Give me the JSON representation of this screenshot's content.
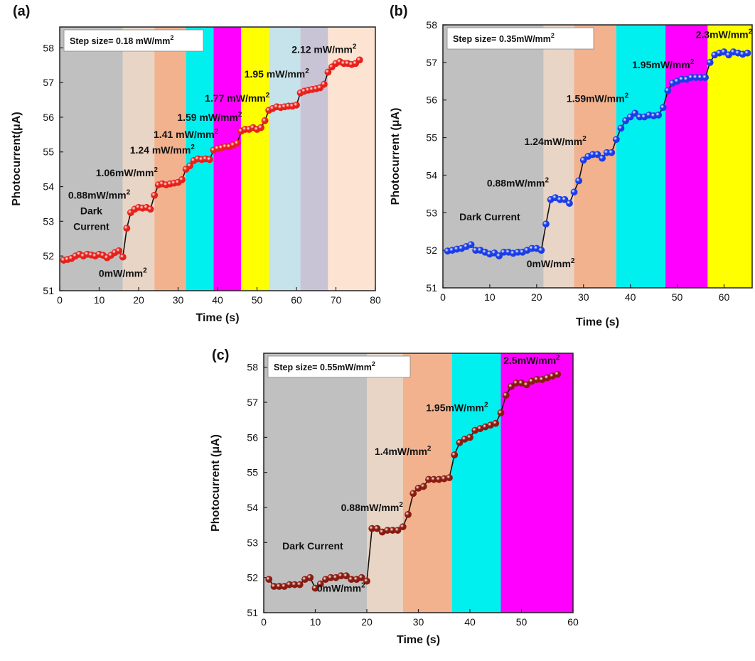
{
  "panels": [
    {
      "panel_label": "(a)",
      "legend_text": "Step size= 0.18 mW/mm",
      "legend_sup": "2",
      "chart_data": {
        "type": "scatter",
        "xlabel": "Time (s)",
        "ylabel": "Photocurrent(μA)",
        "xlim": [
          0,
          80
        ],
        "ylim": [
          51,
          58.6
        ],
        "xticks": [
          0,
          10,
          20,
          30,
          40,
          50,
          60,
          70,
          80
        ],
        "yticks": [
          51,
          52,
          53,
          54,
          55,
          56,
          57,
          58
        ],
        "marker_color": "#e8201a",
        "bands": [
          {
            "from": 0,
            "to": 16,
            "color": "#c0c0c0"
          },
          {
            "from": 16,
            "to": 24,
            "color": "#e8d5c6"
          },
          {
            "from": 24,
            "to": 32,
            "color": "#f2b28e"
          },
          {
            "from": 32,
            "to": 39,
            "color": "#00f0f0"
          },
          {
            "from": 39,
            "to": 46,
            "color": "#ff00ff"
          },
          {
            "from": 46,
            "to": 53,
            "color": "#ffff00"
          },
          {
            "from": 53,
            "to": 61,
            "color": "#c6e2ea"
          },
          {
            "from": 61,
            "to": 68,
            "color": "#c8c4d6"
          },
          {
            "from": 68,
            "to": 80,
            "color": "#fde4d2"
          }
        ],
        "series": [
          {
            "x": [
              1,
              2,
              3,
              4,
              5,
              6,
              7,
              8,
              9,
              10,
              11,
              12,
              13,
              14,
              15,
              16,
              17,
              18,
              19,
              20,
              21,
              22,
              23,
              24,
              25,
              26,
              27,
              28,
              29,
              30,
              31,
              32,
              33,
              34,
              35,
              36,
              37,
              38,
              39,
              40,
              41,
              42,
              43,
              44,
              45,
              46,
              47,
              48,
              49,
              50,
              51,
              52,
              53,
              54,
              55,
              56,
              57,
              58,
              59,
              60,
              61,
              62,
              63,
              64,
              65,
              66,
              67,
              68,
              69,
              70,
              71,
              72,
              73,
              74,
              75,
              76
            ],
            "y": [
              51.88,
              51.9,
              51.93,
              52.0,
              52.05,
              52.0,
              52.05,
              52.03,
              52.0,
              52.05,
              52.02,
              51.95,
              52.02,
              52.1,
              52.15,
              51.97,
              52.8,
              53.25,
              53.35,
              53.4,
              53.38,
              53.4,
              53.35,
              53.75,
              54.05,
              54.08,
              54.05,
              54.08,
              54.1,
              54.12,
              54.2,
              54.5,
              54.6,
              54.75,
              54.8,
              54.78,
              54.8,
              54.78,
              55.05,
              55.1,
              55.12,
              55.15,
              55.15,
              55.2,
              55.25,
              55.6,
              55.65,
              55.65,
              55.7,
              55.65,
              55.7,
              55.9,
              56.2,
              56.25,
              56.3,
              56.28,
              56.3,
              56.32,
              56.32,
              56.35,
              56.7,
              56.75,
              56.78,
              56.8,
              56.82,
              56.85,
              56.95,
              57.3,
              57.45,
              57.55,
              57.6,
              57.55,
              57.55,
              57.52,
              57.55,
              57.65
            ]
          }
        ],
        "annotations": [
          {
            "label": "Dark",
            "x": 8,
            "y": 53.2
          },
          {
            "label": "Current",
            "x": 8,
            "y": 52.75
          },
          {
            "label": "0mW/mm",
            "sup": "2",
            "x": 16,
            "y": 51.4
          },
          {
            "label": "0.88mW/mm",
            "sup": "2",
            "x": 10,
            "y": 53.65
          },
          {
            "label": "1.06mW/mm",
            "sup": "2",
            "x": 17,
            "y": 54.3
          },
          {
            "label": "1.24 mW/mm",
            "sup": "2",
            "x": 26,
            "y": 54.95
          },
          {
            "label": "1.41 mW/mm",
            "sup": "2",
            "x": 32,
            "y": 55.4
          },
          {
            "label": "1.59 mW/mm",
            "sup": "2",
            "x": 38,
            "y": 55.9
          },
          {
            "label": "1.77 mW/mm",
            "sup": "2",
            "x": 45,
            "y": 56.45
          },
          {
            "label": "1.95 mW/mm",
            "sup": "2",
            "x": 55,
            "y": 57.15
          },
          {
            "label": "2.12 mW/mm",
            "sup": "2",
            "x": 67,
            "y": 57.85
          }
        ]
      }
    },
    {
      "panel_label": "(b)",
      "legend_text": "Step size= 0.35mW/mm",
      "legend_sup": "2",
      "chart_data": {
        "type": "scatter",
        "xlabel": "Time (s)",
        "ylabel": "Photocurrent (μA)",
        "xlim": [
          0,
          66
        ],
        "ylim": [
          51,
          58
        ],
        "xticks": [
          0,
          10,
          20,
          30,
          40,
          50,
          60
        ],
        "yticks": [
          51,
          52,
          53,
          54,
          55,
          56,
          57,
          58
        ],
        "marker_color": "#1a3de8",
        "bands": [
          {
            "from": 0,
            "to": 21.5,
            "color": "#c0c0c0"
          },
          {
            "from": 21.5,
            "to": 28,
            "color": "#e8d5c6"
          },
          {
            "from": 28,
            "to": 37,
            "color": "#f2b28e"
          },
          {
            "from": 37,
            "to": 47.5,
            "color": "#00f0f0"
          },
          {
            "from": 47.5,
            "to": 56.5,
            "color": "#ff00ff"
          },
          {
            "from": 56.5,
            "to": 66,
            "color": "#ffff00"
          }
        ],
        "series": [
          {
            "x": [
              1,
              2,
              3,
              4,
              5,
              6,
              7,
              8,
              9,
              10,
              11,
              12,
              13,
              14,
              15,
              16,
              17,
              18,
              19,
              20,
              21,
              22,
              23,
              24,
              25,
              26,
              27,
              28,
              29,
              30,
              31,
              32,
              33,
              34,
              35,
              36,
              37,
              38,
              39,
              40,
              41,
              42,
              43,
              44,
              45,
              46,
              47,
              48,
              49,
              50,
              51,
              52,
              53,
              54,
              55,
              56,
              57,
              58,
              59,
              60,
              61,
              62,
              63,
              64,
              65
            ],
            "y": [
              51.98,
              52.0,
              52.03,
              52.05,
              52.1,
              52.15,
              52.0,
              52.0,
              51.95,
              51.9,
              51.93,
              51.85,
              51.95,
              51.95,
              51.92,
              51.95,
              51.95,
              52.0,
              52.05,
              52.05,
              52.0,
              52.7,
              53.35,
              53.4,
              53.35,
              53.35,
              53.25,
              53.55,
              53.85,
              54.4,
              54.5,
              54.55,
              54.55,
              54.45,
              54.6,
              54.6,
              54.95,
              55.25,
              55.45,
              55.55,
              55.65,
              55.55,
              55.55,
              55.6,
              55.58,
              55.6,
              55.8,
              56.25,
              56.45,
              56.5,
              56.55,
              56.55,
              56.6,
              56.6,
              56.6,
              56.6,
              57.0,
              57.2,
              57.25,
              57.28,
              57.2,
              57.28,
              57.25,
              57.22,
              57.25
            ]
          }
        ],
        "annotations": [
          {
            "label": "Dark Current",
            "x": 10,
            "y": 52.8
          },
          {
            "label": "0mW/mm",
            "sup": "2",
            "x": 23,
            "y": 51.55
          },
          {
            "label": "0.88mW/mm",
            "sup": "2",
            "x": 16,
            "y": 53.7
          },
          {
            "label": "1.24mW/mm",
            "sup": "2",
            "x": 24,
            "y": 54.8
          },
          {
            "label": "1.59mW/mm",
            "sup": "2",
            "x": 33,
            "y": 55.95
          },
          {
            "label": "1.95mW/mm",
            "sup": "2",
            "x": 47,
            "y": 56.85
          },
          {
            "label": "2.3mW/mm",
            "sup": "2",
            "x": 60,
            "y": 57.65
          }
        ]
      }
    },
    {
      "panel_label": "(c)",
      "legend_text": "Step size= 0.55mW/mm",
      "legend_sup": "2",
      "chart_data": {
        "type": "scatter",
        "xlabel": "Time (s)",
        "ylabel": "Photocurrent (μA)",
        "xlim": [
          0,
          60
        ],
        "ylim": [
          51,
          58.4
        ],
        "xticks": [
          0,
          10,
          20,
          30,
          40,
          50,
          60
        ],
        "yticks": [
          51,
          52,
          53,
          54,
          55,
          56,
          57,
          58
        ],
        "marker_color": "#8b1a10",
        "bands": [
          {
            "from": 0,
            "to": 20,
            "color": "#c0c0c0"
          },
          {
            "from": 20,
            "to": 27,
            "color": "#e8d5c6"
          },
          {
            "from": 27,
            "to": 36.5,
            "color": "#f2b28e"
          },
          {
            "from": 36.5,
            "to": 46,
            "color": "#00f0f0"
          },
          {
            "from": 46,
            "to": 60,
            "color": "#ff00ff"
          }
        ],
        "series": [
          {
            "x": [
              1,
              2,
              3,
              4,
              5,
              6,
              7,
              8,
              9,
              10,
              11,
              12,
              13,
              14,
              15,
              16,
              17,
              18,
              19,
              20,
              21,
              22,
              23,
              24,
              25,
              26,
              27,
              28,
              29,
              30,
              31,
              32,
              33,
              34,
              35,
              36,
              37,
              38,
              39,
              40,
              41,
              42,
              43,
              44,
              45,
              46,
              47,
              48,
              49,
              50,
              51,
              52,
              53,
              54,
              55,
              56,
              57
            ],
            "y": [
              51.95,
              51.75,
              51.75,
              51.75,
              51.8,
              51.8,
              51.8,
              51.95,
              52.0,
              51.7,
              51.82,
              51.95,
              52.0,
              52.0,
              52.05,
              52.05,
              51.95,
              51.95,
              52.0,
              51.9,
              53.4,
              53.4,
              53.3,
              53.35,
              53.35,
              53.35,
              53.45,
              53.8,
              54.4,
              54.55,
              54.6,
              54.8,
              54.8,
              54.8,
              54.82,
              54.85,
              55.5,
              55.85,
              55.95,
              56.0,
              56.2,
              56.25,
              56.3,
              56.35,
              56.4,
              56.7,
              57.2,
              57.45,
              57.55,
              57.55,
              57.5,
              57.6,
              57.65,
              57.65,
              57.7,
              57.75,
              57.8
            ]
          }
        ],
        "annotations": [
          {
            "label": "Dark Current",
            "x": 9.5,
            "y": 52.8
          },
          {
            "label": "0mW/mm",
            "sup": "2",
            "x": 15,
            "y": 51.6
          },
          {
            "label": "0.88mW/mm",
            "sup": "2",
            "x": 21,
            "y": 53.9
          },
          {
            "label": "1.4mW/mm",
            "sup": "2",
            "x": 27,
            "y": 55.5
          },
          {
            "label": "1.95mW/mm",
            "sup": "2",
            "x": 37.5,
            "y": 56.75
          },
          {
            "label": "2.5mW/mm",
            "sup": "2",
            "x": 52,
            "y": 58.1
          }
        ]
      }
    }
  ]
}
